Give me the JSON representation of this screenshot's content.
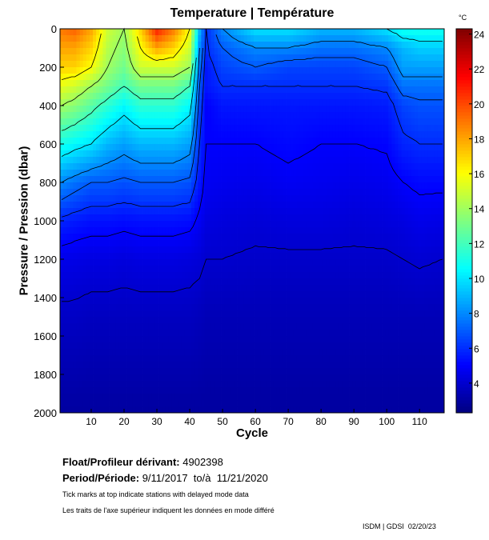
{
  "chart_data": {
    "type": "heatmap",
    "title": "Temperature | Température",
    "xlabel": "Cycle",
    "ylabel": "Pressure / Pression (dbar)",
    "colorbar_label": "°C",
    "xlim": [
      0.5,
      117.5
    ],
    "ylim": [
      2000,
      0
    ],
    "clim": [
      2.3,
      24.3
    ],
    "colormap": "jet",
    "xticks": [
      10,
      20,
      30,
      40,
      50,
      60,
      70,
      80,
      90,
      100,
      110
    ],
    "yticks": [
      0,
      200,
      400,
      600,
      800,
      1000,
      1200,
      1400,
      1600,
      1800,
      2000
    ],
    "cticks": [
      4,
      6,
      8,
      10,
      12,
      14,
      16,
      18,
      20,
      22,
      24
    ],
    "pressure_levels": [
      0,
      100,
      200,
      300,
      400,
      600,
      800,
      1000,
      1200,
      1500,
      2000
    ],
    "cycles": [
      1,
      5,
      10,
      15,
      20,
      25,
      30,
      35,
      40,
      43,
      45,
      50,
      60,
      70,
      80,
      90,
      100,
      105,
      110,
      117
    ],
    "temperature": [
      [
        19,
        19.5,
        18,
        15,
        14,
        17,
        21,
        19,
        16,
        9,
        6,
        8,
        10,
        10,
        9,
        9,
        10,
        11,
        11,
        11
      ],
      [
        18,
        18,
        17,
        14.5,
        13.5,
        16,
        18,
        17,
        15,
        8,
        6,
        7,
        8,
        8,
        7.5,
        7.5,
        8,
        9,
        9.5,
        9.5
      ],
      [
        17,
        17,
        16,
        14,
        13,
        15,
        15,
        15,
        14,
        7.5,
        5.5,
        6.5,
        7,
        6.5,
        6.5,
        6.5,
        7,
        8.5,
        8.5,
        8.5
      ],
      [
        15.5,
        15,
        14,
        13,
        12,
        13,
        13,
        13,
        12,
        7,
        5.5,
        6,
        6,
        6,
        6,
        6,
        6.2,
        7.5,
        7.5,
        7.5
      ],
      [
        14,
        13.5,
        12.5,
        11.5,
        10.5,
        11.5,
        11.5,
        11.5,
        10.5,
        6.5,
        5,
        5.5,
        5.5,
        5.5,
        5.5,
        5.5,
        5.6,
        6.5,
        6.8,
        6.8
      ],
      [
        11,
        10.5,
        10,
        9,
        8.5,
        9,
        9,
        9,
        8.5,
        6,
        5,
        5,
        5,
        5.2,
        5,
        5,
        5.1,
        5.8,
        6,
        6
      ],
      [
        8,
        7.5,
        7,
        7,
        6.8,
        7,
        7,
        7,
        6.8,
        5.5,
        4.8,
        4.7,
        4.6,
        4.8,
        4.7,
        4.6,
        4.7,
        5,
        5.2,
        5.2
      ],
      [
        5.8,
        5.6,
        5.4,
        5.4,
        5.3,
        5.4,
        5.4,
        5.4,
        5.3,
        4.8,
        4.4,
        4.3,
        4.2,
        4.3,
        4.3,
        4.2,
        4.3,
        4.4,
        4.6,
        4.5
      ],
      [
        4.6,
        4.5,
        4.4,
        4.4,
        4.3,
        4.4,
        4.4,
        4.4,
        4.3,
        4.2,
        4,
        4,
        3.9,
        3.9,
        3.9,
        3.9,
        3.9,
        4,
        4.1,
        4
      ],
      [
        3.8,
        3.8,
        3.7,
        3.7,
        3.7,
        3.7,
        3.7,
        3.7,
        3.7,
        3.6,
        3.5,
        3.5,
        3.5,
        3.5,
        3.5,
        3.5,
        3.5,
        3.5,
        3.5,
        3.5
      ],
      [
        3.0,
        3.0,
        3.0,
        3.0,
        3.0,
        3.0,
        3.0,
        3.0,
        3.0,
        3.0,
        3.0,
        3.0,
        3.0,
        3.0,
        3.0,
        3.0,
        3.0,
        3.0,
        3.0,
        3.0
      ]
    ]
  },
  "info": {
    "float_label": "Float/Profileur dérivant:",
    "float_value": "4902398",
    "period_label": "Period/Période:",
    "period_value": "9/11/2017  to/à  11/21/2020",
    "note_en": "Tick marks at top indicate stations with delayed mode data",
    "note_fr": "Les traits de l'axe supérieur indiquent les données en mode différé",
    "credit": "ISDM | GDSI  02/20/23"
  }
}
